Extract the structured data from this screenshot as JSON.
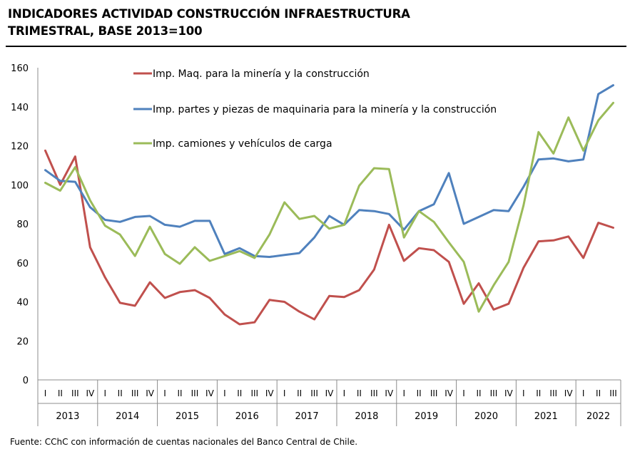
{
  "chart_data": {
    "type": "line",
    "title": "INDICADORES ACTIVIDAD CONSTRUCCIÓN INFRAESTRUCTURA",
    "subtitle": "TRIMESTRAL, BASE 2013=100",
    "xlabel": "",
    "ylabel": "",
    "ylim": [
      0,
      160
    ],
    "yticks": [
      "0",
      "20",
      "40",
      "60",
      "80",
      "100",
      "120",
      "140",
      "160"
    ],
    "grid": false,
    "legend_position": "top-center",
    "years": [
      "2013",
      "2014",
      "2015",
      "2016",
      "2017",
      "2018",
      "2019",
      "2020",
      "2021",
      "2022"
    ],
    "quarters_per_year": [
      4,
      4,
      4,
      4,
      4,
      4,
      4,
      4,
      4,
      3
    ],
    "quarter_labels": [
      "I",
      "II",
      "III",
      "IV"
    ],
    "series": [
      {
        "name": "Imp. Maq. para la minería y la construcción",
        "color": "#c0504d",
        "values": [
          117.5,
          100,
          114.5,
          68,
          52.5,
          39.5,
          38,
          50,
          42,
          45,
          46,
          42,
          33.5,
          28.5,
          29.5,
          41,
          40,
          35,
          31,
          43,
          42.5,
          46,
          56.5,
          79.5,
          61,
          67.5,
          66.5,
          60.5,
          39,
          49.5,
          36,
          39,
          57.5,
          71,
          71.5,
          73.5,
          62.5,
          80.5,
          78
        ]
      },
      {
        "name": "Imp. partes y piezas de maquinaria para la minería y la construcción",
        "color": "#4f81bd",
        "values": [
          107.5,
          102,
          101.5,
          88.5,
          82,
          81,
          83.5,
          84,
          79.5,
          78.5,
          81.5,
          81.5,
          64.5,
          67.5,
          63.5,
          63,
          64,
          65,
          73,
          84,
          79.5,
          87,
          86.5,
          85,
          77,
          86.5,
          90,
          106,
          80,
          83.5,
          87,
          86.5,
          99,
          113,
          113.5,
          112,
          113,
          146.5,
          151
        ]
      },
      {
        "name": "Imp. camiones y vehículos de carga",
        "color": "#9bbb59",
        "values": [
          101,
          97,
          109,
          92,
          79,
          74.5,
          63.5,
          78.5,
          64.5,
          59.5,
          68,
          61,
          63.5,
          66,
          62.5,
          74.5,
          91,
          82.5,
          84,
          77.5,
          79.5,
          99.5,
          108.5,
          108,
          73,
          86.5,
          81,
          70.5,
          60.5,
          35,
          48.5,
          60.5,
          89.5,
          127,
          116,
          134.5,
          117.5,
          133,
          142
        ]
      }
    ]
  },
  "header": {
    "title_line1": "INDICADORES ACTIVIDAD CONSTRUCCIÓN INFRAESTRUCTURA",
    "title_line2": "TRIMESTRAL, BASE 2013=100"
  },
  "footer": {
    "source": "Fuente: CChC con información de cuentas nacionales del Banco Central de Chile."
  }
}
